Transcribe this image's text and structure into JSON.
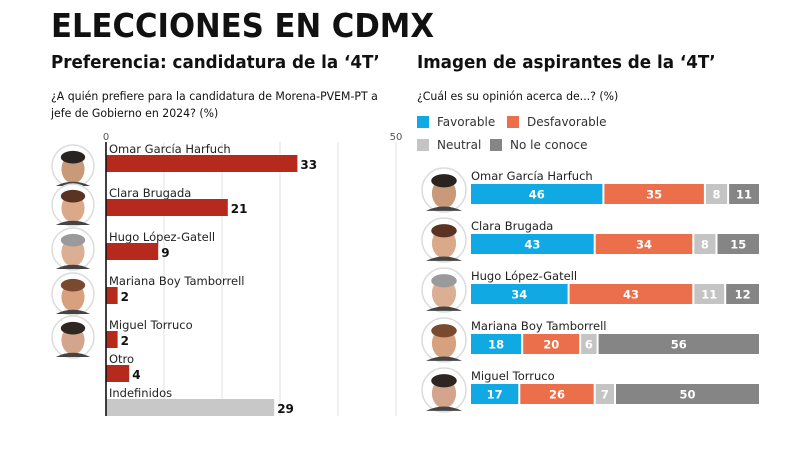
{
  "header": {
    "title": "ELECCIONES EN CDMX"
  },
  "left_panel": {
    "title": "Preferencia: candidatura de la ‘4T’",
    "question": "¿A quién prefiere para la candidatura de Morena-PVEM-PT a jefe de Gobierno en 2024? (%)"
  },
  "right_panel": {
    "title": "Imagen de aspirantes de la ‘4T’",
    "question": "¿Cuál es su opinión acerca de...? (%)"
  },
  "colors": {
    "preference_bar": "#b52a1c",
    "undecided_bar": "#c8c8c8",
    "favorable": "#10a9e3",
    "desfavorable": "#ec6f4b",
    "neutral": "#c4c4c4",
    "no_le_conoce": "#858585"
  },
  "chart_data": [
    {
      "type": "bar",
      "orientation": "horizontal",
      "title": "Preferencia: candidatura de la ‘4T’",
      "subtitle": "¿A quién prefiere para la candidatura de Morena-PVEM-PT a jefe de Gobierno en 2024? (%)",
      "categories": [
        "Omar García Harfuch",
        "Clara Brugada",
        "Hugo López-Gatell",
        "Mariana Boy Tamborrell",
        "Miguel Torruco",
        "Otro",
        "Indefinidos"
      ],
      "values": [
        33,
        21,
        9,
        2,
        2,
        4,
        29
      ],
      "has_photo": [
        true,
        true,
        true,
        true,
        true,
        false,
        false
      ],
      "xlim": [
        0,
        50
      ],
      "xticks": [
        0,
        50
      ],
      "gridlines": [
        10,
        20,
        30,
        40,
        50
      ],
      "grid": true,
      "xlabel": "",
      "ylabel": ""
    },
    {
      "type": "bar",
      "orientation": "horizontal",
      "stacked": true,
      "title": "Imagen de aspirantes de la ‘4T’",
      "subtitle": "¿Cuál es su opinión acerca de...? (%)",
      "categories": [
        "Omar García Harfuch",
        "Clara Brugada",
        "Hugo López-Gatell",
        "Mariana Boy Tamborrell",
        "Miguel Torruco"
      ],
      "series": [
        {
          "name": "Favorable",
          "values": [
            46,
            43,
            34,
            18,
            17
          ]
        },
        {
          "name": "Desfavorable",
          "values": [
            35,
            34,
            43,
            20,
            26
          ]
        },
        {
          "name": "Neutral",
          "values": [
            8,
            8,
            11,
            6,
            7
          ]
        },
        {
          "name": "No le conoce",
          "values": [
            11,
            15,
            12,
            56,
            50
          ]
        }
      ],
      "legend": [
        "Favorable",
        "Desfavorable",
        "Neutral",
        "No le conoce"
      ],
      "legend_placement": "top-left",
      "xlim": [
        0,
        100
      ]
    }
  ]
}
